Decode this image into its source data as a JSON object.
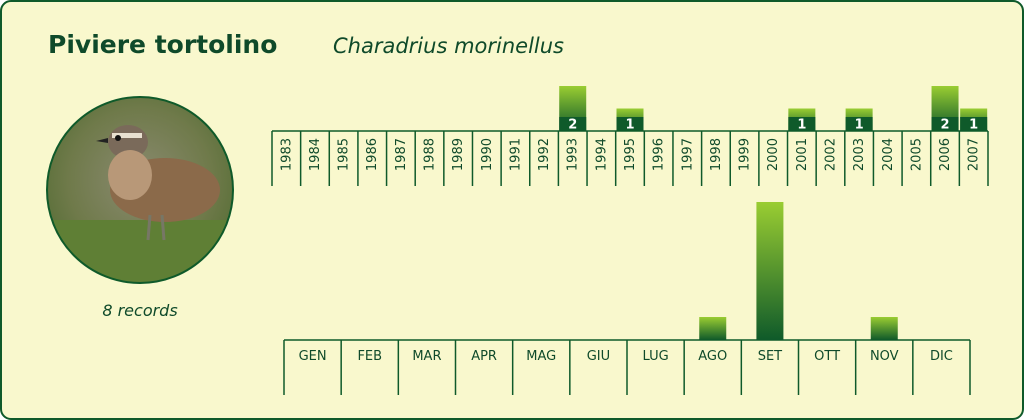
{
  "header": {
    "title": "Piviere tortolino",
    "subtitle": "Charadrius morinellus"
  },
  "records_label": "8 records",
  "chart_data": [
    {
      "type": "bar",
      "orientation": "vertical-labels",
      "show_values": true,
      "categories": [
        "1983",
        "1984",
        "1985",
        "1986",
        "1987",
        "1988",
        "1989",
        "1990",
        "1991",
        "1992",
        "1993",
        "1994",
        "1995",
        "1996",
        "1997",
        "1998",
        "1999",
        "2000",
        "2001",
        "2002",
        "2003",
        "2004",
        "2005",
        "2006",
        "2007"
      ],
      "values": [
        0,
        0,
        0,
        0,
        0,
        0,
        0,
        0,
        0,
        0,
        2,
        0,
        1,
        0,
        0,
        0,
        0,
        0,
        1,
        0,
        1,
        0,
        0,
        2,
        1
      ],
      "color_top": "#9acd32",
      "color_bottom": "#0f5a2a"
    },
    {
      "type": "bar",
      "orientation": "horizontal-labels",
      "show_values": false,
      "categories": [
        "GEN",
        "FEB",
        "MAR",
        "APR",
        "MAG",
        "GIU",
        "LUG",
        "AGO",
        "SET",
        "OTT",
        "NOV",
        "DIC"
      ],
      "values": [
        0,
        0,
        0,
        0,
        0,
        0,
        0,
        1,
        6,
        0,
        1,
        0
      ],
      "color_top": "#9acd32",
      "color_bottom": "#0f5a2a"
    }
  ]
}
